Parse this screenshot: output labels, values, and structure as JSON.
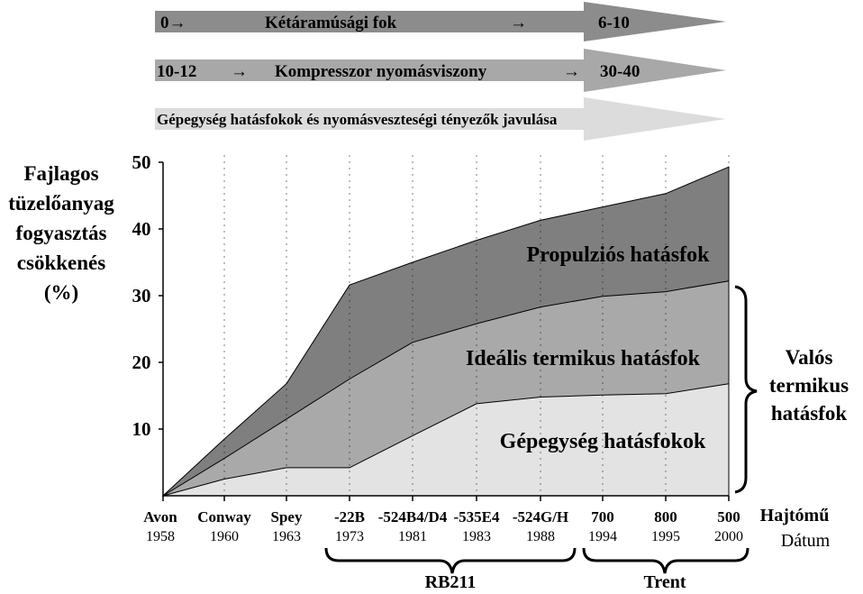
{
  "banners": {
    "b1": {
      "left": "0→",
      "middle": "Kétáramúsági fok",
      "arrow": "→",
      "right": "6-10",
      "color": "#8c8c8c"
    },
    "b2": {
      "left": "10-12",
      "arrow1": "→",
      "middle": "Kompresszor nyomásviszony",
      "arrow2": "→",
      "right": "30-40",
      "color": "#a8a8a8"
    },
    "b3": {
      "text": "Gépegység hatásfokok és nyomásveszteségi tényezők javulása",
      "color": "#dcdcdc"
    }
  },
  "chart_data": {
    "type": "area",
    "ylabel_lines": [
      "Fajlagos",
      "tüzelőanyag",
      "fogyasztás",
      "csökkenés",
      "(%)"
    ],
    "ylim": [
      0,
      50
    ],
    "yticks": [
      "10",
      "20",
      "30",
      "40",
      "50"
    ],
    "categories": [
      {
        "name": "Avon",
        "date": "1958"
      },
      {
        "name": "Conway",
        "date": "1960"
      },
      {
        "name": "Spey",
        "date": "1963"
      },
      {
        "name": "-22B",
        "date": "1973"
      },
      {
        "name": "-524B4/D4",
        "date": "1981"
      },
      {
        "name": "-535E4",
        "date": "1983"
      },
      {
        "name": "-524G/H",
        "date": "1988"
      },
      {
        "name": "700",
        "date": "1994"
      },
      {
        "name": "800",
        "date": "1995"
      },
      {
        "name": "500",
        "date": "2000"
      }
    ],
    "xlabel_top": "Hajtómű",
    "xlabel_bottom": "Dátum",
    "series": [
      {
        "name": "Gépegység hatásfokok",
        "color": "#e3e3e3",
        "values": [
          0,
          2.5,
          4.2,
          4.2,
          9,
          13.8,
          14.8,
          15.1,
          15.3,
          16.8
        ]
      },
      {
        "name": "Ideális termikus hatásfok",
        "color": "#a9a9a9",
        "values": [
          0,
          5.6,
          11.5,
          17.5,
          23.0,
          25.8,
          28.3,
          29.9,
          30.6,
          32.2
        ]
      },
      {
        "name": "Propulziós hatásfok",
        "color": "#7f7f7f",
        "values": [
          0,
          8.5,
          16.8,
          31.6,
          35.0,
          38.3,
          41.3,
          43.3,
          45.3,
          49.3
        ]
      }
    ],
    "brace_right_label_lines": [
      "Valós",
      "termikus",
      "hatásfok"
    ],
    "groups": [
      {
        "label": "RB211"
      },
      {
        "label": "Trent"
      }
    ]
  }
}
